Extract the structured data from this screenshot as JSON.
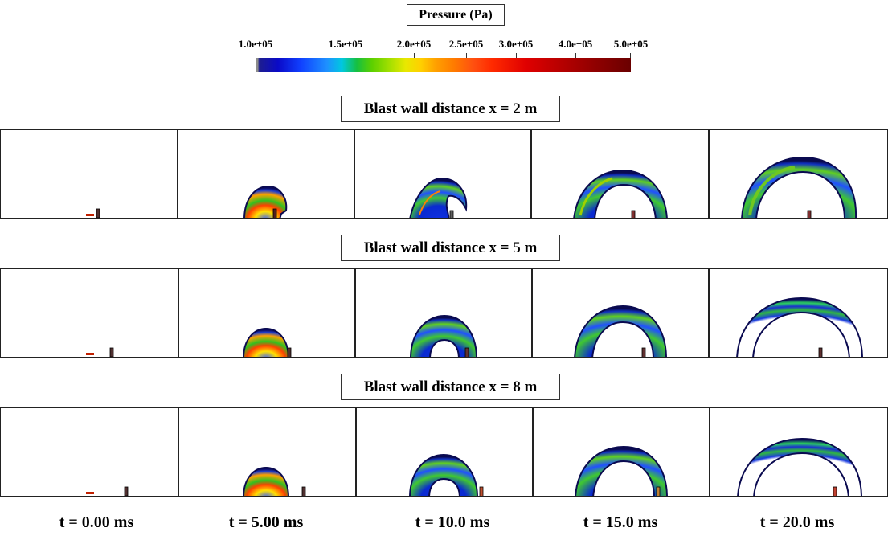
{
  "legend": {
    "title": "Pressure (Pa)",
    "ticks": [
      "1.0e+05",
      "1.5e+05",
      "2.0e+05",
      "2.5e+05",
      "3.0e+05",
      "4.0e+05",
      "5.0e+05"
    ]
  },
  "rows": [
    {
      "title": "Blast wall distance x = 2 m"
    },
    {
      "title": "Blast wall distance x = 5 m"
    },
    {
      "title": "Blast wall distance x = 8 m"
    }
  ],
  "times": [
    "t = 0.00 ms",
    "t = 5.00 ms",
    "t = 10.0 ms",
    "t = 15.0 ms",
    "t = 20.0 ms"
  ]
}
